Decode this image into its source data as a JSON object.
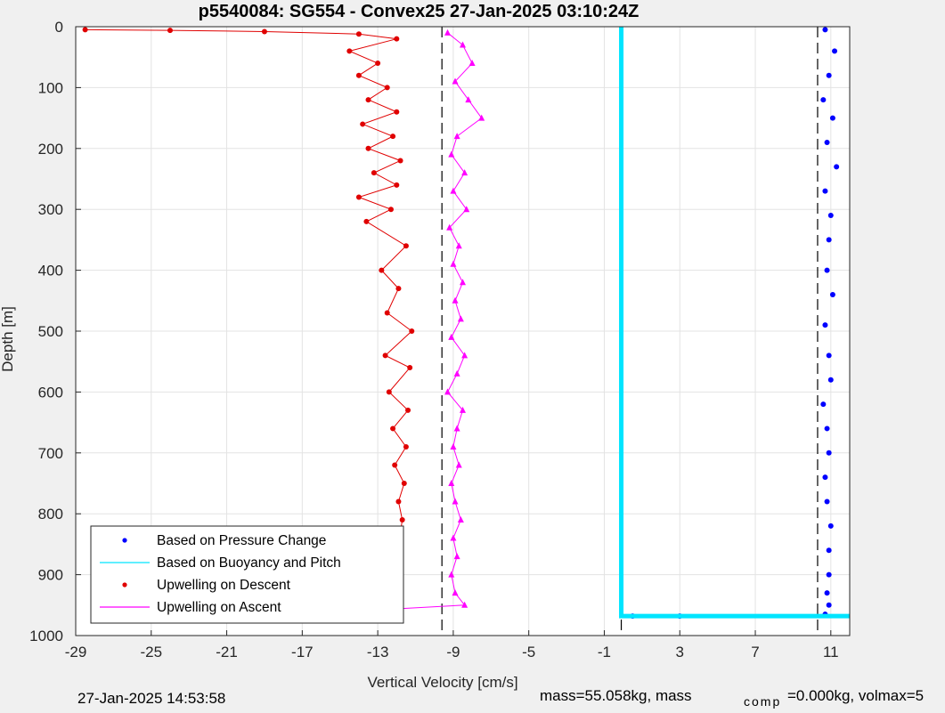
{
  "chart_data": {
    "type": "scatter",
    "title": "p5540084: SG554 - Convex25 27-Jan-2025 03:10:24Z",
    "xlabel": "Vertical Velocity [cm/s]",
    "ylabel": "Depth [m]",
    "xlim": [
      -29,
      12
    ],
    "ylim": [
      1000,
      0
    ],
    "xticks": [
      "-29",
      "-25",
      "-21",
      "-17",
      "-13",
      "-9",
      "-5",
      "-1",
      "3",
      "7",
      "11"
    ],
    "yticks": [
      "0",
      "100",
      "200",
      "300",
      "400",
      "500",
      "600",
      "700",
      "800",
      "900",
      "1000"
    ],
    "grid": true,
    "legend_location": "bottom-left",
    "reference_lines": [
      -9.6,
      -0.1,
      10.3
    ],
    "series": [
      {
        "name": "Based on Pressure Change",
        "color": "#0000ff",
        "marker": "dot",
        "x": [
          10.7,
          11.2,
          10.9,
          10.6,
          11.1,
          10.8,
          11.3,
          10.7,
          11.0,
          10.9,
          10.8,
          11.1,
          10.7,
          10.9,
          11.0,
          10.6,
          10.8,
          10.9,
          10.7,
          10.8,
          11.0,
          10.9,
          10.9,
          10.8,
          10.9,
          10.7,
          3.0,
          0.5
        ],
        "y": [
          5,
          40,
          80,
          120,
          150,
          190,
          230,
          270,
          310,
          350,
          400,
          440,
          490,
          540,
          580,
          620,
          660,
          700,
          740,
          780,
          820,
          860,
          900,
          930,
          950,
          965,
          968,
          968
        ]
      },
      {
        "name": "Based on Buoyancy and Pitch",
        "color": "#00e5ff",
        "marker": "none",
        "x": [
          -0.1,
          -0.1,
          12
        ],
        "y": [
          0,
          968,
          968
        ]
      },
      {
        "name": "Upwelling on Descent",
        "color": "#e00000",
        "marker": "dot",
        "x": [
          -28.5,
          -24.0,
          -19.0,
          -14.0,
          -12.0,
          -14.5,
          -13.0,
          -14.0,
          -12.5,
          -13.5,
          -12.0,
          -13.8,
          -12.2,
          -13.5,
          -11.8,
          -13.2,
          -12.0,
          -14.0,
          -12.3,
          -13.6,
          -11.5,
          -12.8,
          -11.9,
          -12.5,
          -11.2,
          -12.6,
          -11.3,
          -12.4,
          -11.4,
          -12.2,
          -11.5,
          -12.1,
          -11.6,
          -11.9,
          -11.7,
          -11.9,
          -11.8,
          -11.9,
          -11.9,
          -11.9
        ],
        "y": [
          5,
          6,
          8,
          12,
          20,
          40,
          60,
          80,
          100,
          120,
          140,
          160,
          180,
          200,
          220,
          240,
          260,
          280,
          300,
          320,
          360,
          400,
          430,
          470,
          500,
          540,
          560,
          600,
          630,
          660,
          690,
          720,
          750,
          780,
          810,
          850,
          880,
          920,
          945,
          960
        ]
      },
      {
        "name": "Upwelling on Ascent",
        "color": "#ff00ff",
        "marker": "triangle",
        "x": [
          -9.3,
          -8.5,
          -8.0,
          -8.9,
          -8.2,
          -7.5,
          -8.8,
          -9.1,
          -8.4,
          -9.0,
          -8.3,
          -9.2,
          -8.7,
          -9.0,
          -8.5,
          -8.9,
          -8.6,
          -9.1,
          -8.4,
          -8.8,
          -9.3,
          -8.5,
          -8.8,
          -9.0,
          -8.7,
          -9.1,
          -8.9,
          -8.6,
          -9.0,
          -8.8,
          -9.1,
          -8.9,
          -8.4,
          -17.9
        ],
        "y": [
          10,
          30,
          60,
          90,
          120,
          150,
          180,
          210,
          240,
          270,
          300,
          330,
          360,
          390,
          420,
          450,
          480,
          510,
          540,
          570,
          600,
          630,
          660,
          690,
          720,
          750,
          780,
          810,
          840,
          870,
          900,
          930,
          950,
          966
        ]
      }
    ]
  },
  "footer": {
    "timestamp": "27-Jan-2025 14:53:58",
    "mass": "mass=55.058kg, mass",
    "comp_sub": "comp",
    "comp_rest": "=0.000kg, volmax=5"
  }
}
